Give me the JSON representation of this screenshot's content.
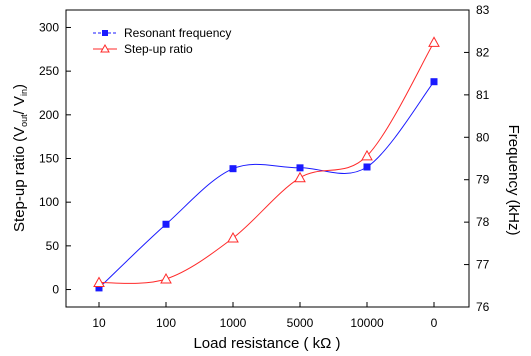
{
  "chart_data": {
    "type": "line",
    "categories": [
      "10",
      "100",
      "1000",
      "5000",
      "10000",
      "0"
    ],
    "xlabel": "Load resistance ( kΩ )",
    "ylabel_left": {
      "main": "Step-up ratio (V",
      "sub1": "out",
      "mid": "/ V",
      "sub2": "in",
      "end": ")"
    },
    "ylabel_right": "Frequency (kHz)",
    "y_left": {
      "lim": [
        -20,
        320
      ],
      "ticks": [
        0,
        50,
        100,
        150,
        200,
        250,
        300
      ]
    },
    "y_right": {
      "lim": [
        76,
        83
      ],
      "ticks": [
        76,
        77,
        78,
        79,
        80,
        81,
        82,
        83
      ]
    },
    "series": [
      {
        "name": "Resonant frequency",
        "axis": "right",
        "marker": "filled-square",
        "color": "#1a1aff",
        "line_style": "dashed-fit",
        "values": [
          76.45,
          77.95,
          79.26,
          79.28,
          79.3,
          81.31
        ]
      },
      {
        "name": "Step-up ratio",
        "axis": "left",
        "marker": "open-triangle",
        "color": "#ff2a2a",
        "line_style": "solid-fit",
        "values": [
          8,
          12,
          59,
          128,
          153,
          283
        ]
      }
    ],
    "legend_position": "top-left",
    "grid": false
  }
}
